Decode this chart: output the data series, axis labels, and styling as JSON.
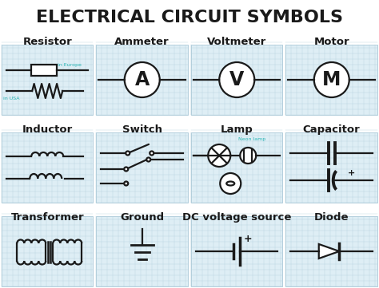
{
  "title": "ELECTRICAL CIRCUIT SYMBOLS",
  "title_fontsize": 16,
  "bg_color": "#ffffff",
  "grid_bg": "#deeef5",
  "grid_line_color": "#b8d4e0",
  "line_color": "#1a1a1a",
  "teal_color": "#2ab5b5",
  "label_fontsize": 9.5,
  "cells": [
    {
      "name": "Resistor",
      "col": 0,
      "row": 0
    },
    {
      "name": "Ammeter",
      "col": 1,
      "row": 0
    },
    {
      "name": "Voltmeter",
      "col": 2,
      "row": 0
    },
    {
      "name": "Motor",
      "col": 3,
      "row": 0
    },
    {
      "name": "Inductor",
      "col": 0,
      "row": 1
    },
    {
      "name": "Switch",
      "col": 1,
      "row": 1
    },
    {
      "name": "Lamp",
      "col": 2,
      "row": 1
    },
    {
      "name": "Capacitor",
      "col": 3,
      "row": 1
    },
    {
      "name": "Transformer",
      "col": 0,
      "row": 2
    },
    {
      "name": "Ground",
      "col": 1,
      "row": 2
    },
    {
      "name": "DC voltage source",
      "col": 2,
      "row": 2
    },
    {
      "name": "Diode",
      "col": 3,
      "row": 2
    }
  ]
}
